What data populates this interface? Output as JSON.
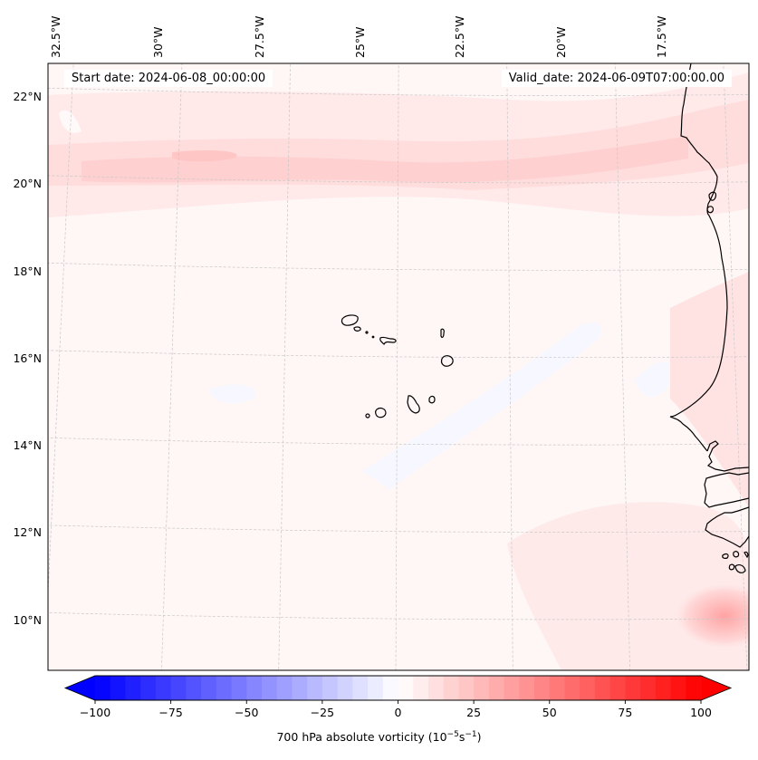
{
  "figure": {
    "start_date_text": "Start date: 2024-06-08_00:00:00",
    "valid_date_text": "Valid_date: 2024-06-09T07:00:00.00",
    "colorbar": {
      "label_prefix": "700 hPa absolute vorticity (10",
      "label_exp1": "−5",
      "label_mid": "s",
      "label_exp2": "−1",
      "label_suffix": ")"
    }
  },
  "chart_data": {
    "type": "heatmap",
    "title": "",
    "variable": "700 hPa absolute vorticity",
    "units": "10^-5 s^-1",
    "start_date": "2024-06-08_00:00:00",
    "valid_date": "2024-06-09T07:00:00.00",
    "projection_extent": {
      "lon_range": [
        -33,
        -15.8
      ],
      "lat_range": [
        8.9,
        22.8
      ]
    },
    "lon_ticks": [
      "32.5°W",
      "30°W",
      "27.5°W",
      "25°W",
      "22.5°W",
      "20°W",
      "17.5°W"
    ],
    "lon_tick_values": [
      -32.5,
      -30,
      -27.5,
      -25,
      -22.5,
      -20,
      -17.5
    ],
    "lat_ticks": [
      "22°N",
      "20°N",
      "18°N",
      "16°N",
      "14°N",
      "12°N",
      "10°N"
    ],
    "lat_tick_values": [
      22,
      20,
      18,
      16,
      14,
      12,
      10
    ],
    "grid": true,
    "colormap": "bwr",
    "levels": {
      "min": -100,
      "max": 100,
      "step": 5,
      "extend": "both"
    },
    "colorbar_ticks": [
      "−100",
      "−75",
      "−50",
      "−25",
      "0",
      "25",
      "50",
      "75",
      "100"
    ],
    "colorbar_tick_values": [
      -100,
      -75,
      -50,
      -25,
      0,
      25,
      50,
      75,
      100
    ],
    "features": [
      {
        "name": "subtropical band",
        "lat": 20.5,
        "lon_range": [
          -33,
          -16
        ],
        "value_approx": 15
      },
      {
        "name": "vorticity maximum",
        "lat": 10.1,
        "lon": -16.2,
        "value_approx": 30
      },
      {
        "name": "Cape Verde islands",
        "lat_range": [
          14.8,
          17.2
        ],
        "lon_range": [
          -25.4,
          -22.6
        ]
      },
      {
        "name": "West African coastline",
        "lon_range": [
          -17.6,
          -15.8
        ]
      }
    ]
  }
}
